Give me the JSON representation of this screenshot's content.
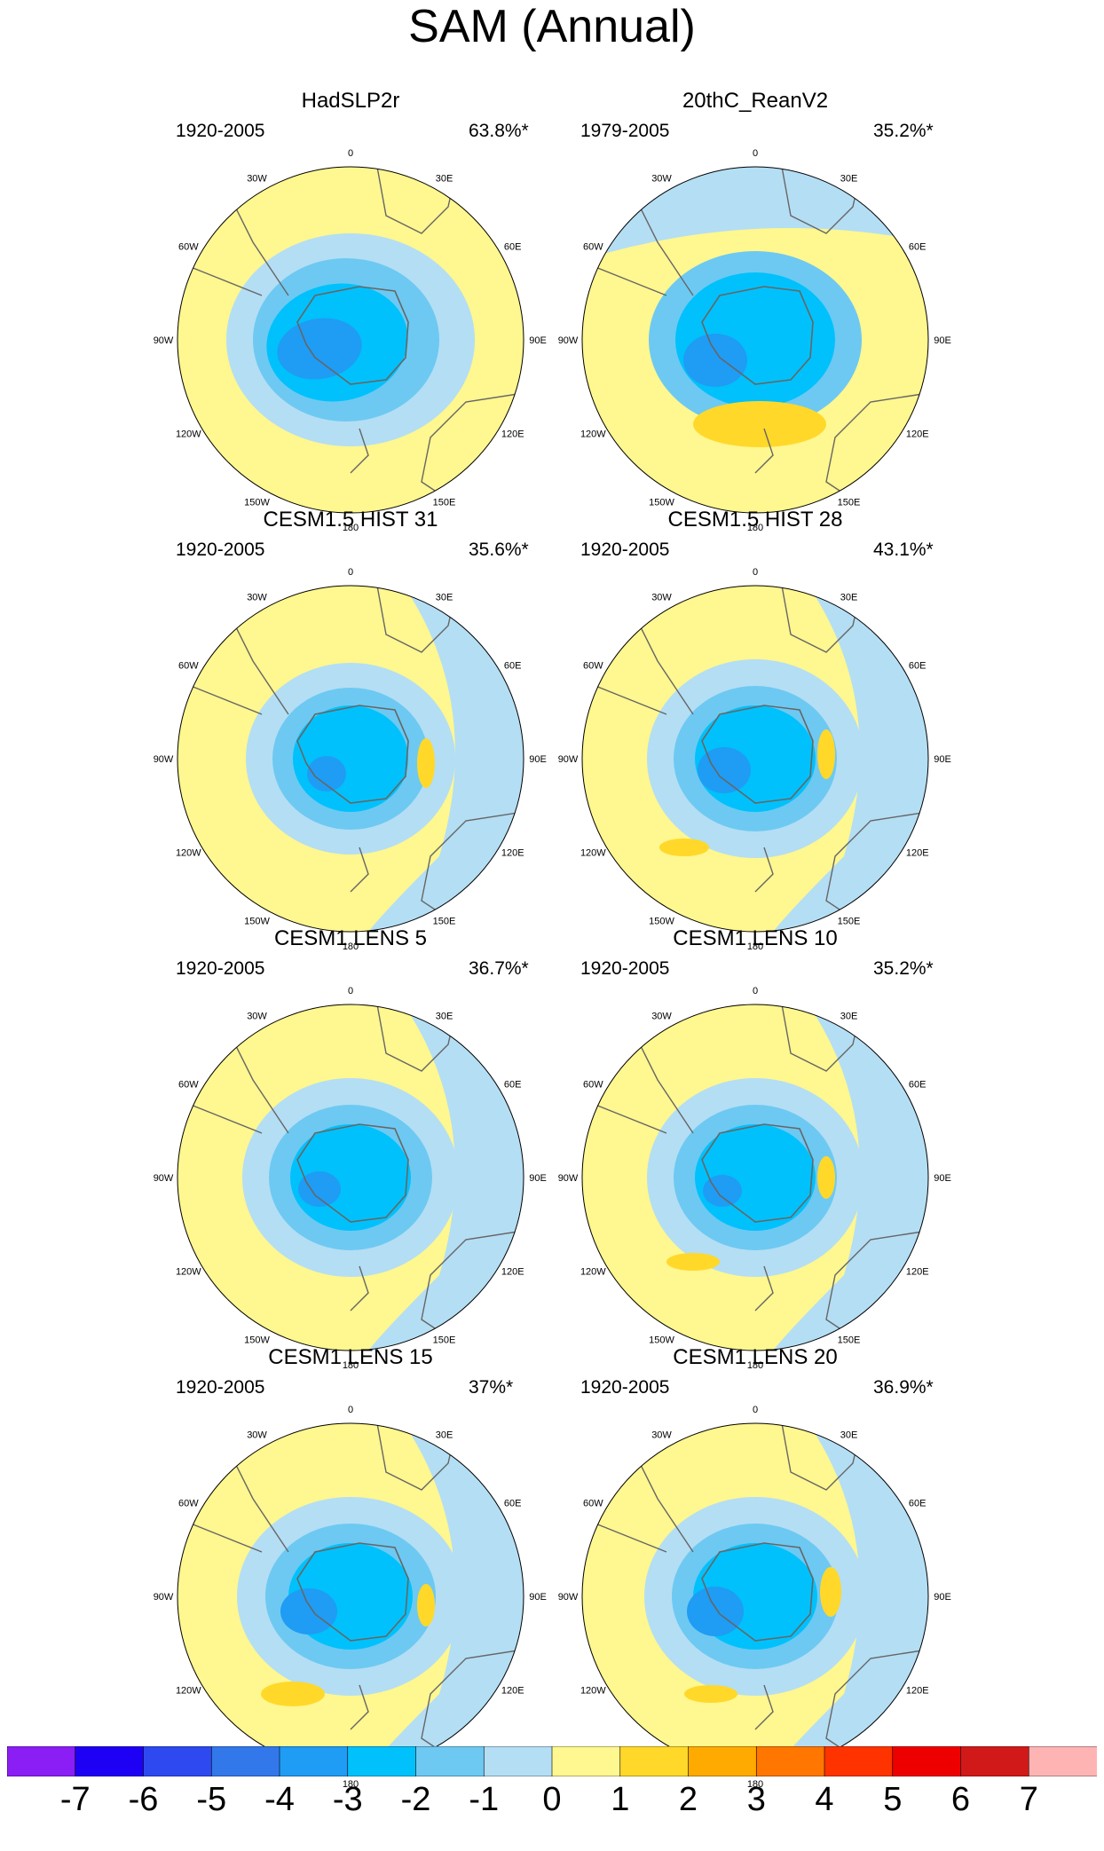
{
  "title": "SAM (Annual)",
  "longitude_labels": [
    "0",
    "30E",
    "60E",
    "90E",
    "120E",
    "150E",
    "180",
    "150W",
    "120W",
    "90W",
    "60W",
    "30W"
  ],
  "colors": {
    "land_outline": "#666666",
    "map_border": "#000000",
    "bg_positive": "#fff78f"
  },
  "panels": [
    {
      "title": "HadSLP2r",
      "period": "1920-2005",
      "percent": "63.8%*"
    },
    {
      "title": "20thC_ReanV2",
      "period": "1979-2005",
      "percent": "35.2%*"
    },
    {
      "title": "CESM1.5 HIST 31",
      "period": "1920-2005",
      "percent": "35.6%*"
    },
    {
      "title": "CESM1.5 HIST 28",
      "period": "1920-2005",
      "percent": "43.1%*"
    },
    {
      "title": "CESM1 LENS 5",
      "period": "1920-2005",
      "percent": "36.7%*"
    },
    {
      "title": "CESM1 LENS 10",
      "period": "1920-2005",
      "percent": "35.2%*"
    },
    {
      "title": "CESM1 LENS 15",
      "period": "1920-2005",
      "percent": "37%*"
    },
    {
      "title": "CESM1 LENS 20",
      "period": "1920-2005",
      "percent": "36.9%*"
    }
  ],
  "colorbar": {
    "colors": [
      "#8a1ef5",
      "#1e00f5",
      "#2f49f0",
      "#3378ea",
      "#1f9cf4",
      "#00c1fb",
      "#6dc9f2",
      "#b4def4",
      "#fff78f",
      "#ffd82a",
      "#ffaa00",
      "#ff7600",
      "#ff3300",
      "#ee0000",
      "#d21919",
      "#ffb4b4"
    ],
    "tick_labels": [
      "-7",
      "-6",
      "-5",
      "-4",
      "-3",
      "-2",
      "-1",
      "0",
      "1",
      "2",
      "3",
      "4",
      "5",
      "6",
      "7"
    ]
  }
}
